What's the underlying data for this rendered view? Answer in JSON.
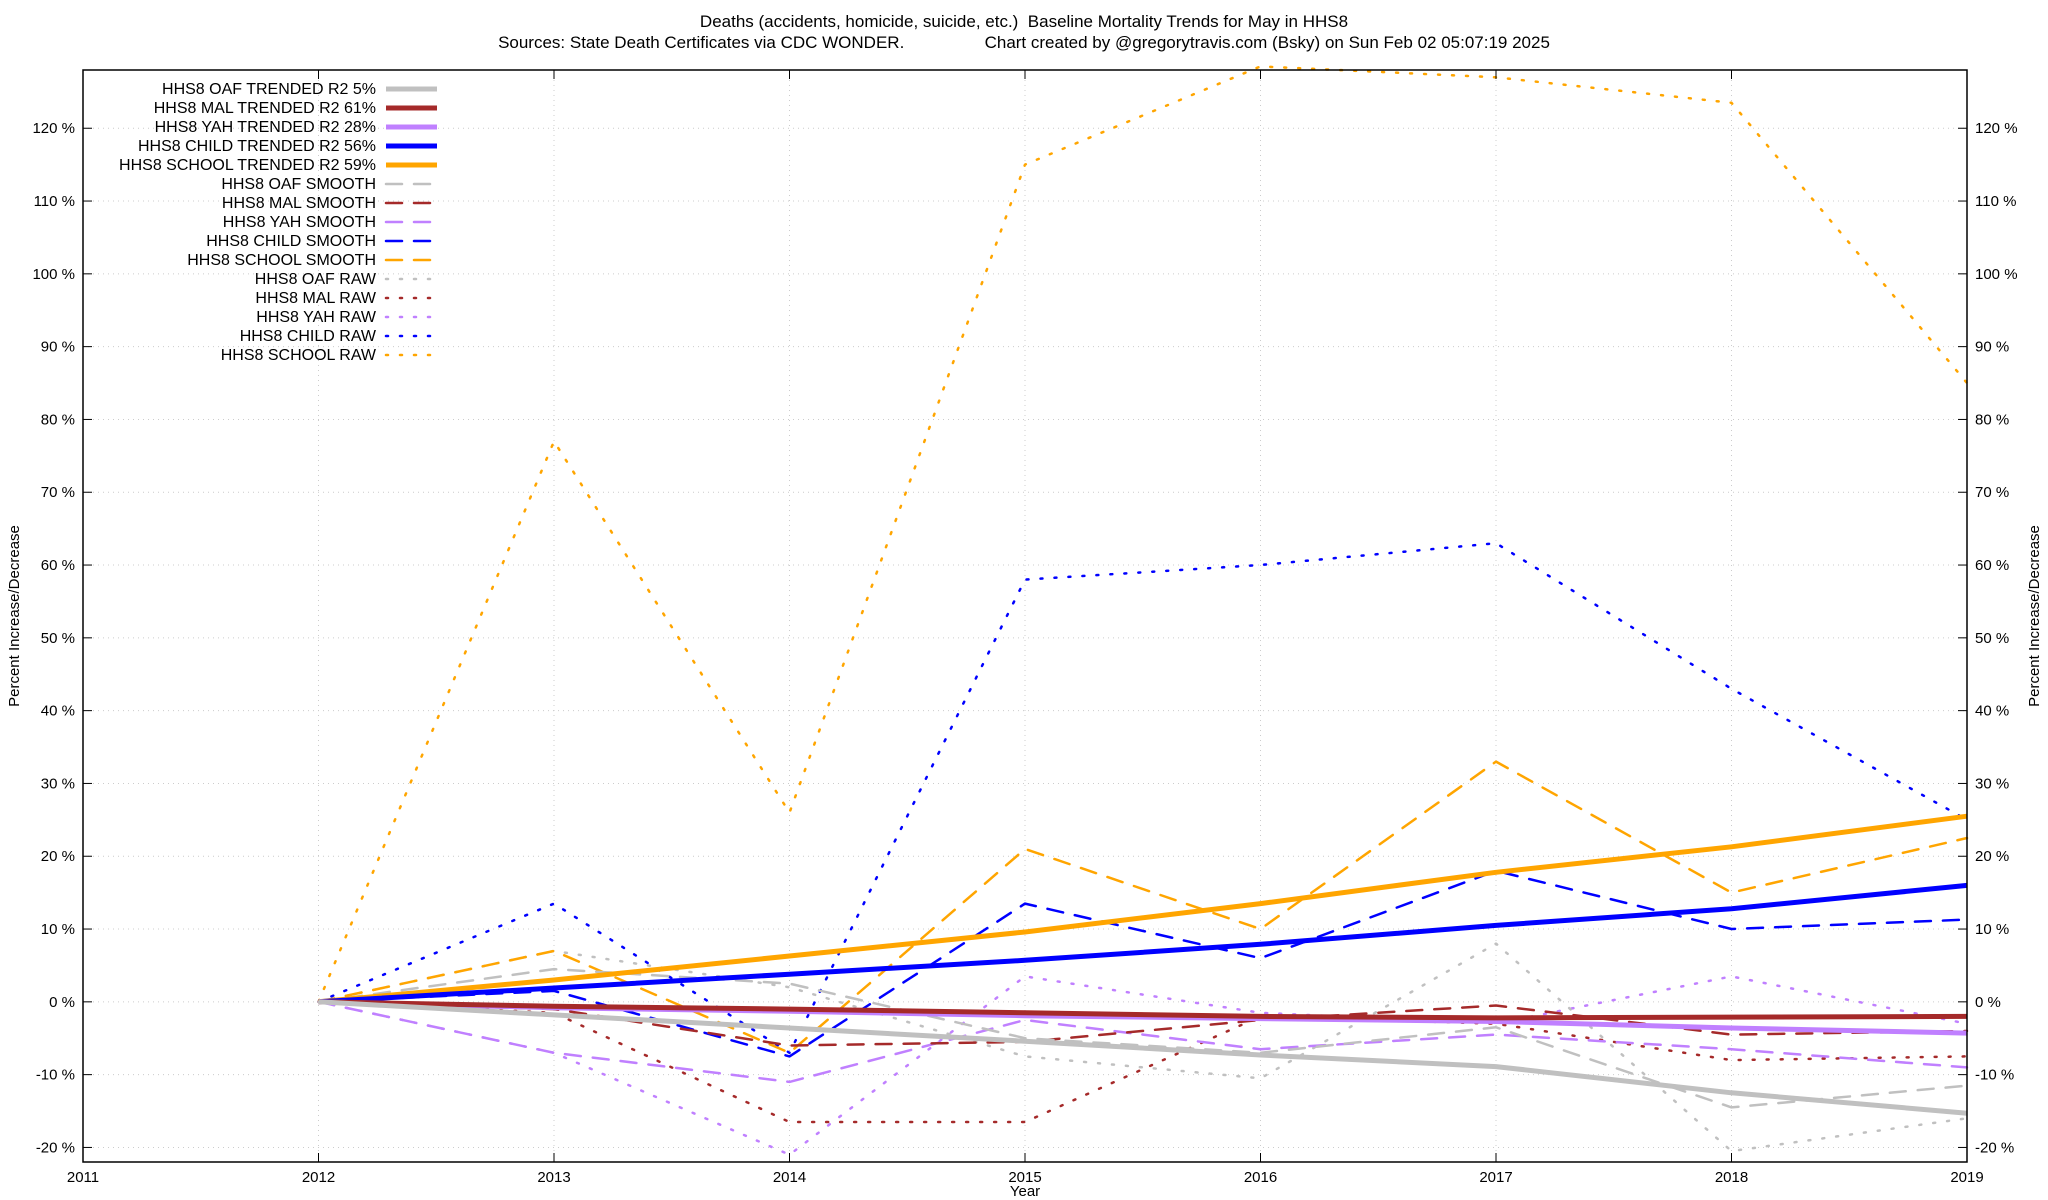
{
  "titles": {
    "line1": "Deaths (accidents, homicide, suicide, etc.)  Baseline Mortality Trends for May in HHS8",
    "line2": "Sources: State Death Certificates via CDC WONDER.                 Chart created by @gregorytravis.com (Bsky) on Sun Feb 02 05:07:19 2025"
  },
  "chart_data": {
    "type": "line",
    "title": "Deaths (accidents, homicide, suicide, etc.)  Baseline Mortality Trends for May in HHS8",
    "subtitle": "Sources: State Death Certificates via CDC WONDER.                 Chart created by @gregorytravis.com (Bsky) on Sun Feb 02 05:07:19 2025",
    "xlabel": "Year",
    "ylabel": "Percent Increase/Decrease",
    "y2label": "Percent Increase/Decrease",
    "xlim": [
      2011,
      2019
    ],
    "ylim": [
      -22,
      128
    ],
    "x_ticks": [
      2011,
      2012,
      2013,
      2014,
      2015,
      2016,
      2017,
      2018,
      2019
    ],
    "y_ticks": [
      -20,
      -10,
      0,
      10,
      20,
      30,
      40,
      50,
      60,
      70,
      80,
      90,
      100,
      110,
      120
    ],
    "y_tick_suffix": " %",
    "grid": true,
    "legend_position": "top-left",
    "series": [
      {
        "name": "HHS8 OAF TRENDED R2  5%",
        "style": "solid",
        "color": "#c0c0c0",
        "x": [
          2012,
          2013,
          2014,
          2015,
          2016,
          2017,
          2018,
          2019
        ],
        "y": [
          0,
          -1.8,
          -3.6,
          -5.4,
          -7.3,
          -8.9,
          -12.5,
          -15.3
        ]
      },
      {
        "name": "HHS8 MAL TRENDED R2  61%",
        "style": "solid",
        "color": "#a52a2a",
        "x": [
          2012,
          2013,
          2014,
          2015,
          2016,
          2017,
          2018,
          2019
        ],
        "y": [
          0,
          -0.6,
          -1.0,
          -1.5,
          -2.0,
          -2.2,
          -2.1,
          -2.0
        ]
      },
      {
        "name": "HHS8 YAH TRENDED R2  28%",
        "style": "solid",
        "color": "#c080ff",
        "x": [
          2012,
          2013,
          2014,
          2015,
          2016,
          2017,
          2018,
          2019
        ],
        "y": [
          0,
          -0.8,
          -1.3,
          -1.9,
          -2.3,
          -2.7,
          -3.6,
          -4.3
        ]
      },
      {
        "name": "HHS8 CHILD TRENDED R2  56%",
        "style": "solid",
        "color": "#0000ff",
        "x": [
          2012,
          2013,
          2014,
          2015,
          2016,
          2017,
          2018,
          2019
        ],
        "y": [
          0,
          1.9,
          3.8,
          5.7,
          7.9,
          10.5,
          12.8,
          16.0
        ]
      },
      {
        "name": "HHS8 SCHOOL TRENDED R2  59%",
        "style": "solid",
        "color": "#ffa500",
        "x": [
          2012,
          2013,
          2014,
          2015,
          2016,
          2017,
          2018,
          2019
        ],
        "y": [
          0,
          3.0,
          6.3,
          9.6,
          13.5,
          17.8,
          21.3,
          25.5
        ]
      },
      {
        "name": "HHS8 OAF SMOOTH",
        "style": "dashed",
        "color": "#c0c0c0",
        "x": [
          2012,
          2013,
          2014,
          2015,
          2016,
          2017,
          2018,
          2019
        ],
        "y": [
          0,
          4.5,
          2.5,
          -5.0,
          -7.0,
          -3.5,
          -14.5,
          -11.5
        ]
      },
      {
        "name": "HHS8 MAL SMOOTH",
        "style": "dashed",
        "color": "#a52a2a",
        "x": [
          2012,
          2013,
          2014,
          2015,
          2016,
          2017,
          2018,
          2019
        ],
        "y": [
          0,
          -1.0,
          -6.0,
          -5.5,
          -2.5,
          -0.5,
          -4.5,
          -4.0
        ]
      },
      {
        "name": "HHS8 YAH SMOOTH",
        "style": "dashed",
        "color": "#c080ff",
        "x": [
          2012,
          2013,
          2014,
          2015,
          2016,
          2017,
          2018,
          2019
        ],
        "y": [
          0,
          -7.0,
          -11.0,
          -2.5,
          -6.5,
          -4.5,
          -6.5,
          -9.0
        ]
      },
      {
        "name": "HHS8 CHILD SMOOTH",
        "style": "dashed",
        "color": "#0000ff",
        "x": [
          2012,
          2013,
          2014,
          2015,
          2016,
          2017,
          2018,
          2019
        ],
        "y": [
          0,
          1.5,
          -7.5,
          13.5,
          6.0,
          18.0,
          10.0,
          11.3
        ]
      },
      {
        "name": "HHS8 SCHOOL SMOOTH",
        "style": "dashed",
        "color": "#ffa500",
        "x": [
          2012,
          2013,
          2014,
          2015,
          2016,
          2017,
          2018,
          2019
        ],
        "y": [
          0,
          7.0,
          -7.0,
          21.0,
          10.0,
          33.0,
          15.0,
          22.5
        ]
      },
      {
        "name": "HHS8 OAF RAW",
        "style": "dotted",
        "color": "#c0c0c0",
        "x": [
          2012,
          2013,
          2014,
          2015,
          2016,
          2017,
          2018,
          2019
        ],
        "y": [
          0,
          7.0,
          2.0,
          -7.5,
          -10.5,
          8.0,
          -20.5,
          -16.0
        ]
      },
      {
        "name": "HHS8 MAL RAW",
        "style": "dotted",
        "color": "#a52a2a",
        "x": [
          2012,
          2013,
          2014,
          2015,
          2016,
          2017,
          2018,
          2019
        ],
        "y": [
          0,
          -1.5,
          -16.5,
          -16.5,
          -2.0,
          -3.0,
          -8.0,
          -7.5
        ]
      },
      {
        "name": "HHS8 YAH RAW",
        "style": "dotted",
        "color": "#c080ff",
        "x": [
          2012,
          2013,
          2014,
          2015,
          2016,
          2017,
          2018,
          2019
        ],
        "y": [
          0,
          -7.0,
          -21.0,
          3.5,
          -1.5,
          -3.0,
          3.5,
          -3.0
        ]
      },
      {
        "name": "HHS8 CHILD RAW",
        "style": "dotted",
        "color": "#0000ff",
        "x": [
          2012,
          2013,
          2014,
          2015,
          2016,
          2017,
          2018,
          2019
        ],
        "y": [
          0,
          13.5,
          -7.0,
          58.0,
          60.0,
          63.0,
          43.0,
          25.0
        ]
      },
      {
        "name": "HHS8 SCHOOL RAW",
        "style": "dotted",
        "color": "#ffa500",
        "x": [
          2012,
          2013,
          2014,
          2015,
          2016,
          2017,
          2018,
          2019
        ],
        "y": [
          0,
          77.0,
          26.0,
          115.0,
          128.5,
          127.0,
          123.5,
          85.0
        ]
      }
    ]
  }
}
